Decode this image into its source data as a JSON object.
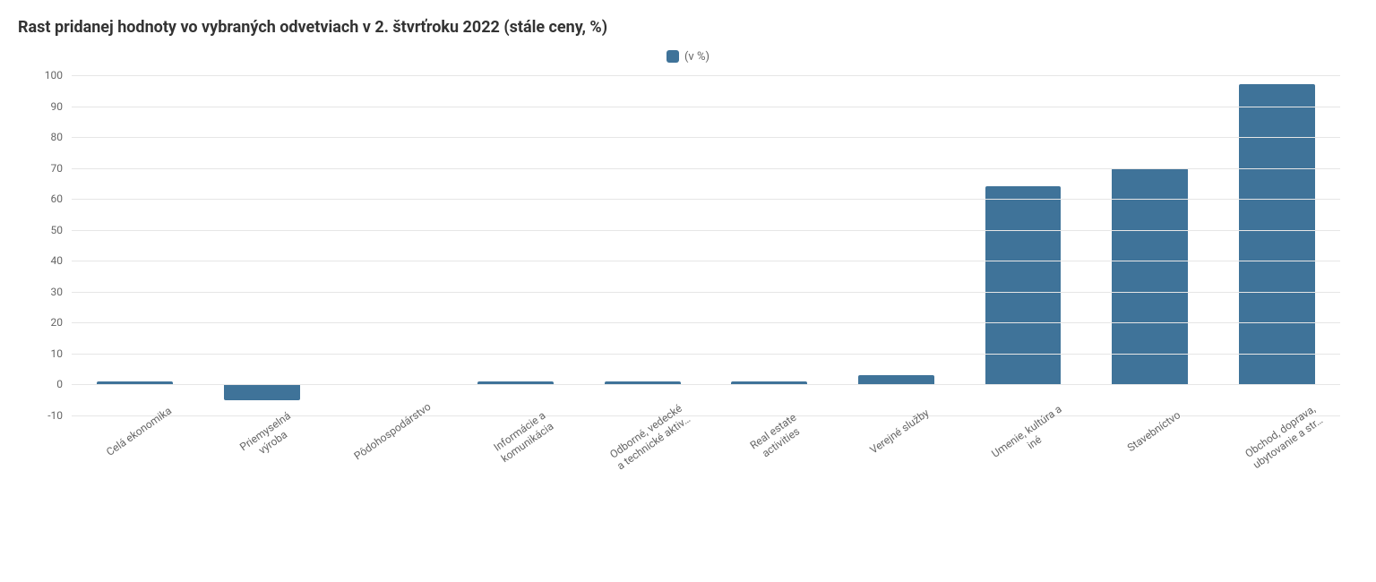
{
  "title": "Rast pridanej hodnoty vo vybraných odvetviach v 2. štvrťroku 2022 (stále ceny, %)",
  "title_fontsize": 18,
  "title_color": "#333333",
  "legend": {
    "label": "(v %)",
    "swatch_color": "#3f7399",
    "text_color": "#666666",
    "fontsize": 13
  },
  "chart": {
    "type": "bar",
    "background_color": "#ffffff",
    "grid_color": "#e6e6e6",
    "bar_color": "#3f7399",
    "bar_width": 0.6,
    "ylim": [
      -10,
      100
    ],
    "ytick_step": 10,
    "yticks": [
      -10,
      0,
      10,
      20,
      30,
      40,
      50,
      60,
      70,
      80,
      90,
      100
    ],
    "axis_label_color": "#666666",
    "axis_label_fontsize": 12,
    "x_label_rotation_deg": -35,
    "categories": [
      "Celá ekonomika",
      "Priemyselná\nvýroba",
      "Pôdohospodárstvo",
      "Informácie a\nkomunikácia",
      "Odborné, vedecké\na technické aktiv…",
      "Real estate\nactivities",
      "Verejné služby",
      "Umenie, kultúra a\niné",
      "Stavebníctvo",
      "Obchod, doprava,\nubytovanie a str…"
    ],
    "values": [
      1,
      -5,
      0,
      1,
      1,
      1,
      3,
      64,
      70,
      97
    ]
  }
}
